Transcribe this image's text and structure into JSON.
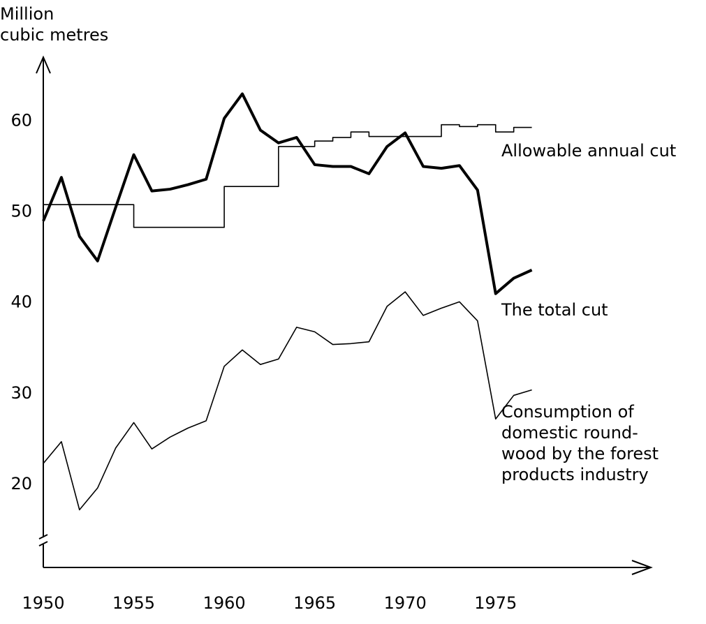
{
  "chart_data": {
    "type": "line",
    "ylabel": [
      "Million",
      "cubic metres"
    ],
    "xlim": [
      1950,
      1983.5
    ],
    "ylim": [
      10.85,
      66.8
    ],
    "xticks": [
      1950,
      1955,
      1960,
      1965,
      1970,
      1975
    ],
    "yticks": [
      20,
      30,
      40,
      50,
      60
    ],
    "series": [
      {
        "label": "Allowable annual cut",
        "color": "#000000",
        "width": 1.6,
        "step": true,
        "x": [
          1950,
          1955,
          1960,
          1963,
          1965,
          1966,
          1967,
          1968,
          1972,
          1973,
          1974,
          1975,
          1976,
          1977
        ],
        "values": [
          50.8,
          48.3,
          52.8,
          57.2,
          57.8,
          58.2,
          58.8,
          58.3,
          59.6,
          59.4,
          59.6,
          58.8,
          59.3,
          59.3
        ]
      },
      {
        "label": "The total cut",
        "color": "#000000",
        "width": 4,
        "x": [
          1950,
          1951,
          1952,
          1953,
          1954,
          1955,
          1956,
          1957,
          1958,
          1959,
          1960,
          1961,
          1962,
          1963,
          1964,
          1965,
          1966,
          1967,
          1968,
          1969,
          1970,
          1971,
          1972,
          1973,
          1974,
          1975,
          1976,
          1977
        ],
        "values": [
          49,
          53.8,
          47.3,
          44.6,
          50.5,
          56.3,
          52.3,
          52.5,
          53,
          53.6,
          60.3,
          63,
          59,
          57.6,
          58.2,
          55.2,
          55,
          55,
          54.2,
          57.2,
          58.7,
          55,
          54.8,
          55.1,
          52.4,
          41,
          42.7,
          43.6
        ]
      },
      {
        "label": [
          "Consumption of",
          "domestic round-",
          "wood by the forest",
          "products industry"
        ],
        "color": "#000000",
        "width": 1.6,
        "x": [
          1950,
          1951,
          1952,
          1953,
          1954,
          1955,
          1956,
          1957,
          1958,
          1959,
          1960,
          1961,
          1962,
          1963,
          1964,
          1965,
          1966,
          1967,
          1968,
          1969,
          1970,
          1971,
          1972,
          1973,
          1974,
          1975,
          1976,
          1977
        ],
        "values": [
          22.3,
          24.7,
          17.2,
          19.6,
          24,
          26.8,
          23.9,
          25.2,
          26.2,
          27,
          33,
          34.8,
          33.2,
          33.8,
          37.3,
          36.8,
          35.4,
          35.5,
          35.7,
          39.6,
          41.2,
          38.6,
          39.4,
          40.1,
          38,
          27.2,
          29.8,
          30.4
        ]
      }
    ]
  }
}
